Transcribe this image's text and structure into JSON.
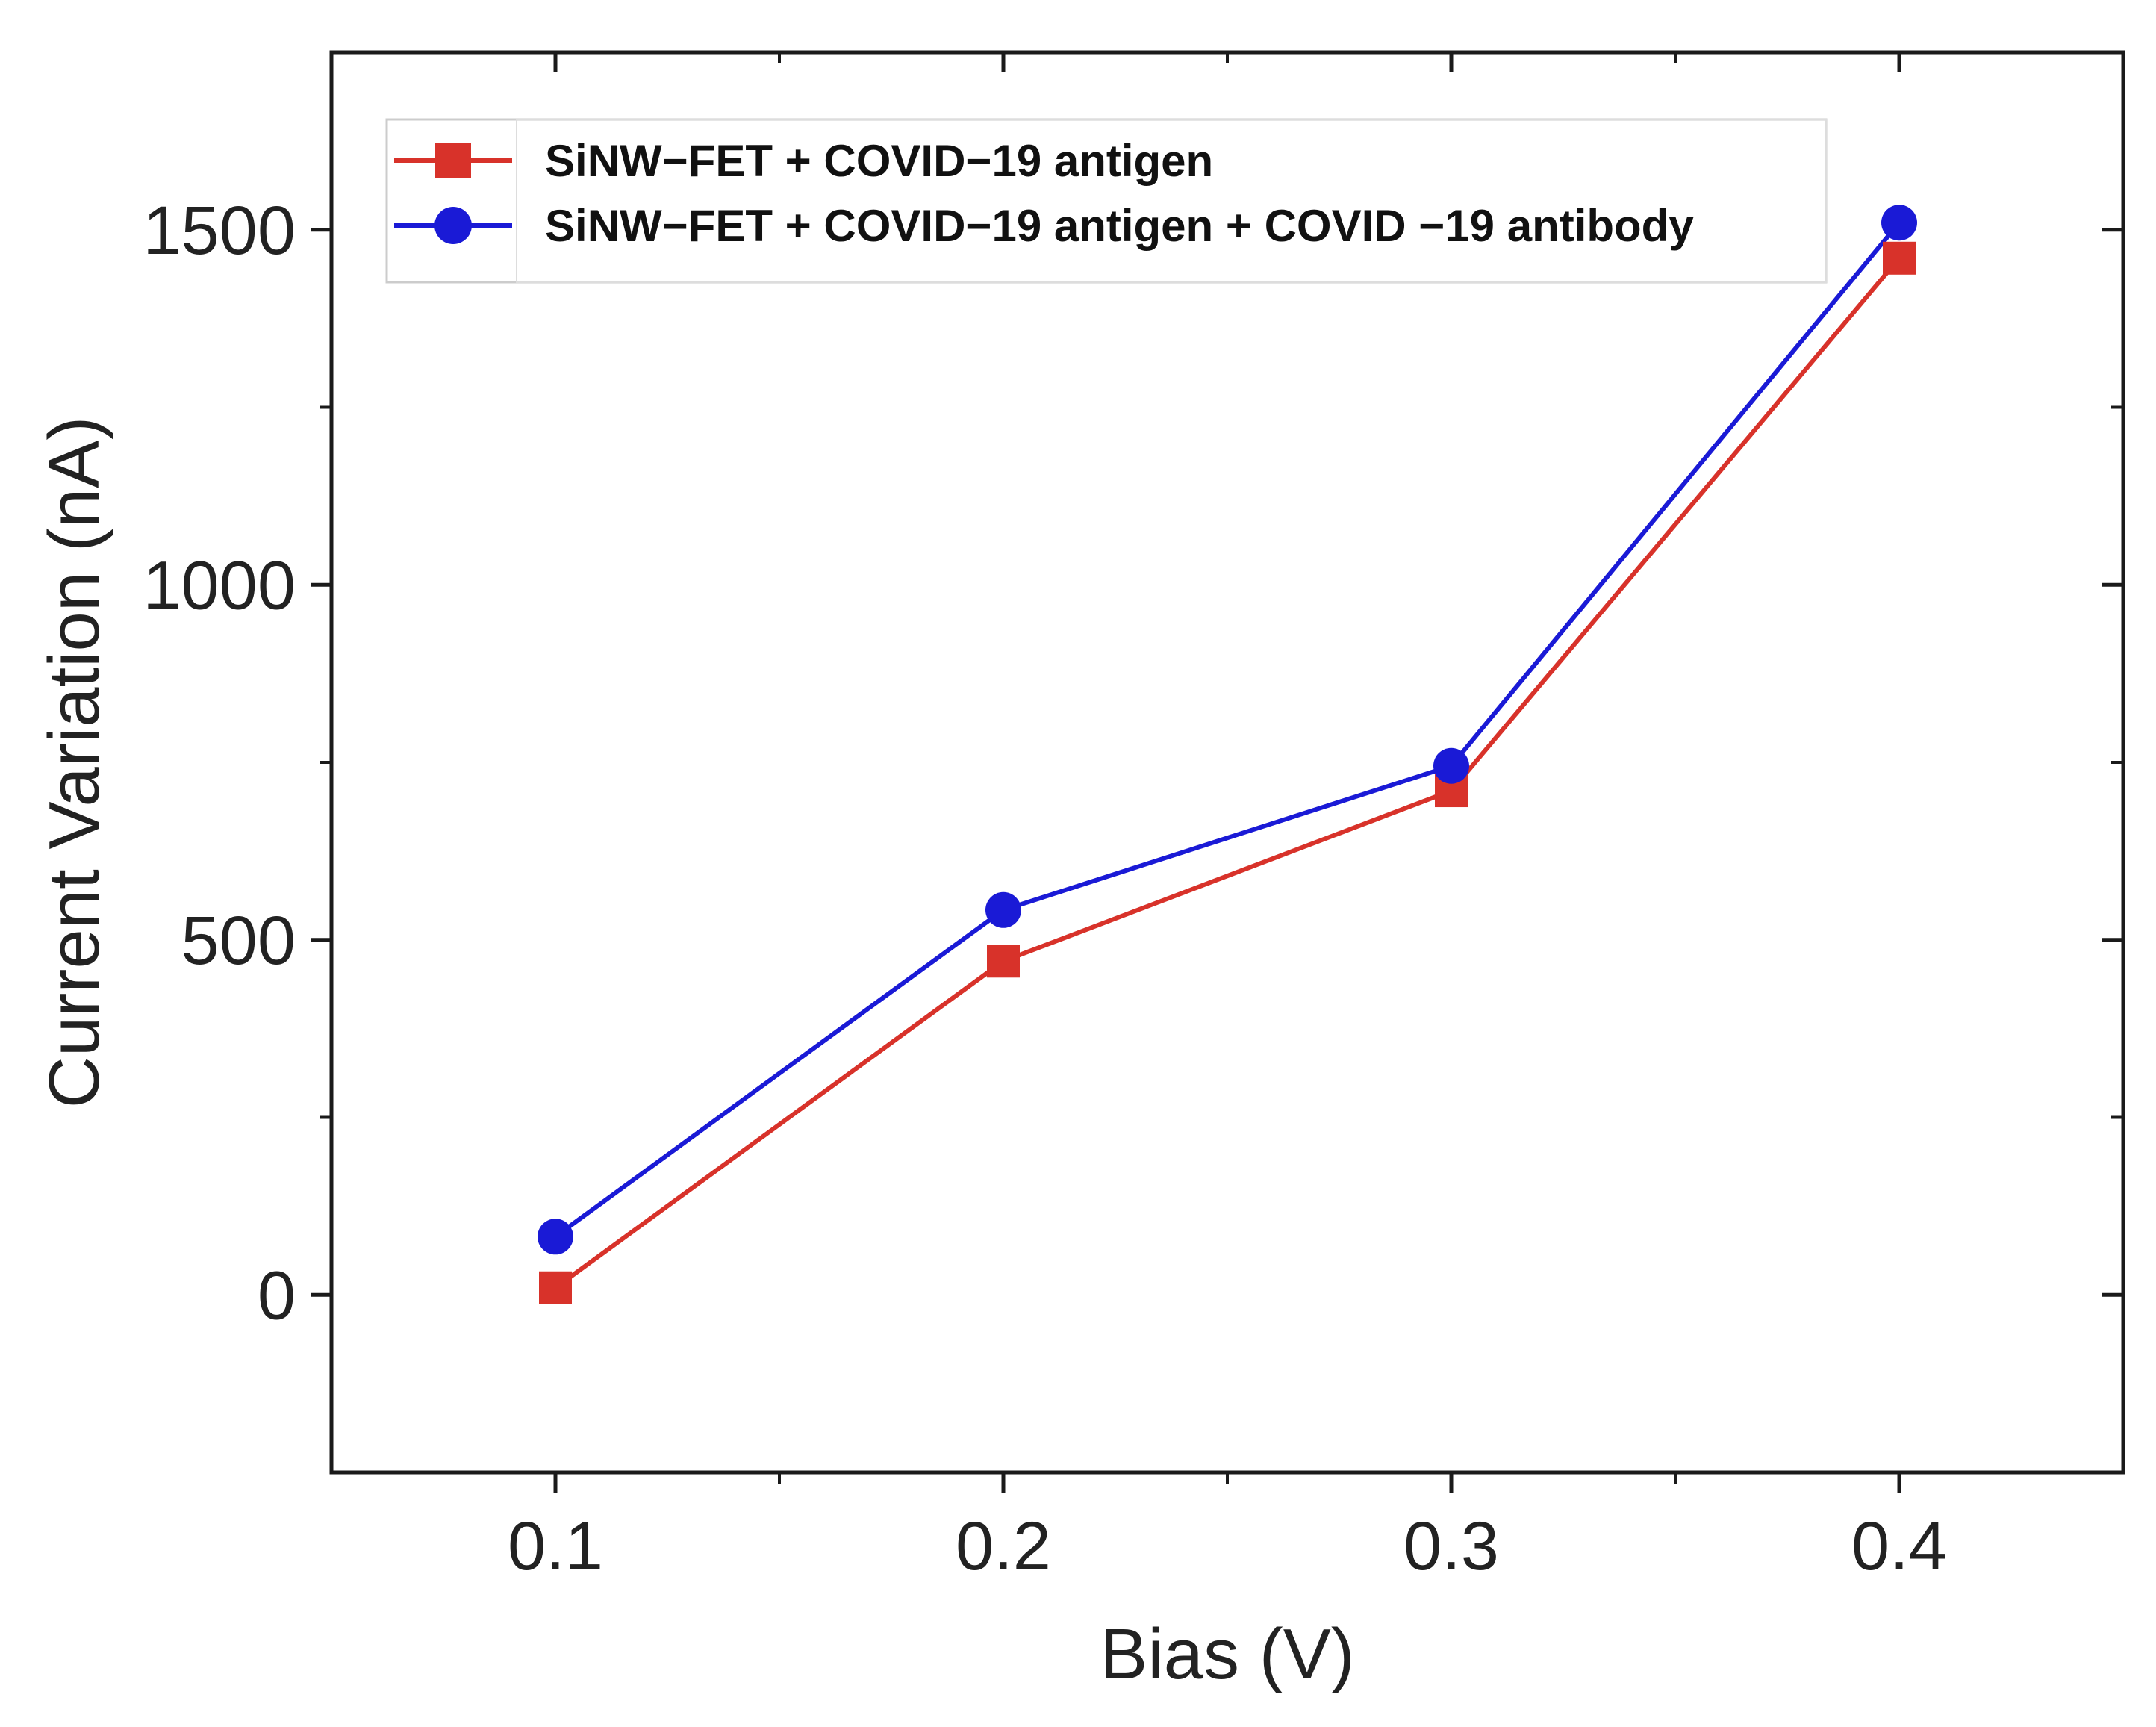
{
  "chart_data": {
    "type": "line",
    "title": "",
    "xlabel": "Bias (V)",
    "ylabel": "Current Variation (nA)",
    "xlim": [
      0.05,
      0.45
    ],
    "ylim": [
      -250,
      1750
    ],
    "xticks": [
      0.1,
      0.2,
      0.3,
      0.4
    ],
    "xtick_labels": [
      "0.1",
      "0.2",
      "0.3",
      "0.4"
    ],
    "yticks": [
      0,
      500,
      1000,
      1500
    ],
    "ytick_labels": [
      "0",
      "500",
      "1000",
      "1500"
    ],
    "grid": false,
    "legend_position": "top-left",
    "x": [
      0.1,
      0.2,
      0.3,
      0.4
    ],
    "series": [
      {
        "name": "SiNW−FET + COVID−19 antigen",
        "marker": "square",
        "color": "#d8322a",
        "values": [
          10,
          470,
          710,
          1460
        ]
      },
      {
        "name": "SiNW−FET + COVID−19 antigen + COVID −19  antibody",
        "marker": "circle",
        "color": "#1a1ad6",
        "values": [
          82,
          542,
          745,
          1510
        ]
      }
    ]
  }
}
